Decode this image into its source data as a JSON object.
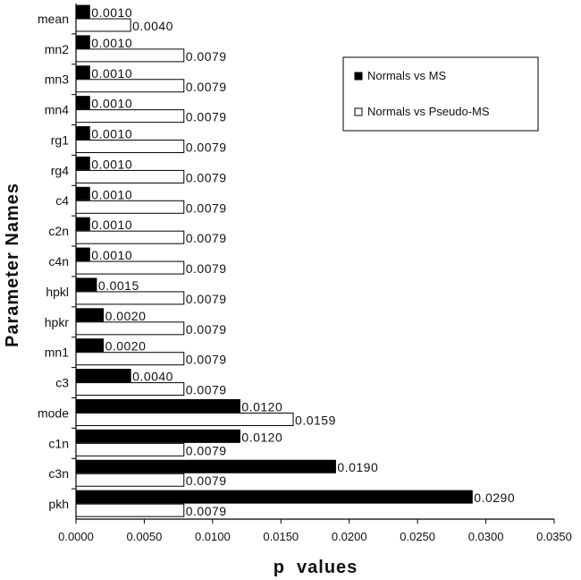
{
  "chart_data": {
    "type": "bar",
    "orientation": "horizontal",
    "title": "",
    "xlabel": "p  values",
    "ylabel": "Parameter Names",
    "xlim": [
      0,
      0.035
    ],
    "x_ticks": [
      "0.0000",
      "0.0050",
      "0.0100",
      "0.0150",
      "0.0200",
      "0.0250",
      "0.0300",
      "0.0350"
    ],
    "categories": [
      "mean",
      "mn2",
      "mn3",
      "mn4",
      "rg1",
      "rg4",
      "c4",
      "c2n",
      "c4n",
      "hpkl",
      "hpkr",
      "mn1",
      "c3",
      "mode",
      "c1n",
      "c3n",
      "pkh"
    ],
    "series": [
      {
        "name": "Normals vs MS",
        "color": "#000000",
        "values": [
          0.001,
          0.001,
          0.001,
          0.001,
          0.001,
          0.001,
          0.001,
          0.001,
          0.001,
          0.0015,
          0.002,
          0.002,
          0.004,
          0.012,
          0.012,
          0.019,
          0.029
        ],
        "labels": [
          "0.0010",
          "0.0010",
          "0.0010",
          "0.0010",
          "0.0010",
          "0.0010",
          "0.0010",
          "0.0010",
          "0.0010",
          "0.0015",
          "0.0020",
          "0.0020",
          "0.0040",
          "0.0120",
          "0.0120",
          "0.0190",
          "0.0290"
        ]
      },
      {
        "name": "Normals vs Pseudo-MS",
        "color": "#ffffff",
        "values": [
          0.004,
          0.0079,
          0.0079,
          0.0079,
          0.0079,
          0.0079,
          0.0079,
          0.0079,
          0.0079,
          0.0079,
          0.0079,
          0.0079,
          0.0079,
          0.0159,
          0.0079,
          0.0079,
          0.0079
        ],
        "labels": [
          "0.0040",
          "0.0079",
          "0.0079",
          "0.0079",
          "0.0079",
          "0.0079",
          "0.0079",
          "0.0079",
          "0.0079",
          "0.0079",
          "0.0079",
          "0.0079",
          "0.0079",
          "0.0159",
          "0.0079",
          "0.0079",
          "0.0079"
        ]
      }
    ],
    "legend_position": "top-right",
    "grid": false
  }
}
